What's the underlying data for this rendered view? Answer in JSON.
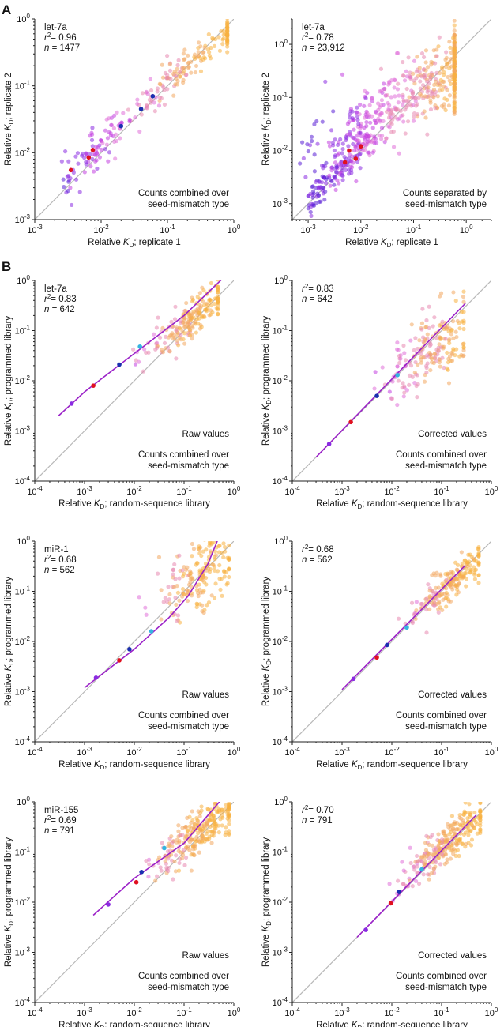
{
  "figure": {
    "panel_letters": [
      "A",
      "B"
    ],
    "colors": {
      "identity_line": "#b8b8b8",
      "fit_line": "#9b22c8",
      "scatter_palette": [
        "#5a1fd6",
        "#8a2be2",
        "#c23fe0",
        "#e070d8",
        "#e888b0",
        "#f2a860",
        "#f7b040"
      ],
      "mark_points": [
        "#8a2be2",
        "#e01020",
        "#1a2fb0",
        "#35b4e0"
      ]
    }
  },
  "chart_data": [
    {
      "type": "scatter",
      "panel": "A",
      "xlabel": "Relative K_D; replicate 1",
      "ylabel": "Relative K_D; replicate 2",
      "xlim": [
        0.001,
        1
      ],
      "ylim": [
        0.001,
        1
      ],
      "x_scale": "log",
      "y_scale": "log",
      "x_ticks": [
        "10^-3",
        "10^-2",
        "10^-1",
        "10^0"
      ],
      "y_ticks": [
        "10^-3",
        "10^-2",
        "10^-1",
        "10^0"
      ],
      "identity_line": true,
      "stats": {
        "name": "let-7a",
        "r2": "0.96",
        "n": "1477"
      },
      "annotation": [
        "Counts combined over",
        "seed-mismatch type"
      ],
      "cloud": {
        "center_x": 0.2,
        "center_y": 0.2,
        "spread_x": 0.7,
        "spread_y": 0.12,
        "tail_x": [
          0.0025,
          0.02
        ],
        "count": 260
      },
      "highlighted_points": [
        {
          "x": 0.0035,
          "y": 0.0055,
          "color": "#e01020"
        },
        {
          "x": 0.0065,
          "y": 0.0085,
          "color": "#e01020"
        },
        {
          "x": 0.0075,
          "y": 0.011,
          "color": "#e01020"
        },
        {
          "x": 0.02,
          "y": 0.025,
          "color": "#1a2fb0"
        },
        {
          "x": 0.04,
          "y": 0.045,
          "color": "#1a2fb0"
        },
        {
          "x": 0.06,
          "y": 0.07,
          "color": "#1a2fb0"
        }
      ]
    },
    {
      "type": "scatter",
      "panel": "A",
      "xlabel": "Relative K_D; replicate 1",
      "ylabel": "Relative K_D; replicate 2",
      "xlim": [
        0.0005,
        3
      ],
      "ylim": [
        0.0005,
        3
      ],
      "x_scale": "log",
      "y_scale": "log",
      "x_ticks": [
        "10^-3",
        "10^-2",
        "10^-1",
        "10^0"
      ],
      "y_ticks": [
        "10^-3",
        "10^-2",
        "10^-1",
        "10^0"
      ],
      "identity_line": true,
      "stats": {
        "name": "let-7a",
        "r2": "0.78",
        "n": "23,912"
      },
      "annotation": [
        "Counts separated by",
        "seed-mismatch type"
      ],
      "cloud": {
        "center_x": 0.15,
        "center_y": 0.15,
        "spread_x": 1.2,
        "spread_y": 0.35,
        "tail_x": [
          0.001,
          0.02
        ],
        "count": 700
      },
      "highlighted_points": [
        {
          "x": 0.006,
          "y": 0.01,
          "color": "#e01020"
        },
        {
          "x": 0.008,
          "y": 0.007,
          "color": "#e01020"
        },
        {
          "x": 0.01,
          "y": 0.012,
          "color": "#e01020"
        },
        {
          "x": 0.005,
          "y": 0.006,
          "color": "#e01020"
        }
      ]
    },
    {
      "type": "scatter",
      "panel": "B",
      "xlabel": "Relative K_D; random-sequence library",
      "ylabel": "Relative K_D; programmed library",
      "xlim": [
        0.0001,
        1
      ],
      "ylim": [
        0.0001,
        1
      ],
      "x_scale": "log",
      "y_scale": "log",
      "x_ticks": [
        "10^-4",
        "10^-3",
        "10^-2",
        "10^-1",
        "10^0"
      ],
      "y_ticks": [
        "10^-4",
        "10^-3",
        "10^-2",
        "10^-1",
        "10^0"
      ],
      "identity_line": true,
      "fit_curve": {
        "x": [
          0.0003,
          0.001,
          0.01,
          0.1,
          0.6
        ],
        "y": [
          0.002,
          0.006,
          0.035,
          0.2,
          1.1
        ]
      },
      "stats": {
        "name": "let-7a",
        "r2": "0.83",
        "n": "642"
      },
      "labels": [
        "Raw values",
        "Counts combined over",
        "seed-mismatch type"
      ],
      "cloud": {
        "center_x": 0.12,
        "center_y": 0.15,
        "spread_x": 0.45,
        "spread_y": 0.18,
        "count": 200
      },
      "highlighted_points": [
        {
          "x": 0.00055,
          "y": 0.0035,
          "color": "#8a2be2"
        },
        {
          "x": 0.0015,
          "y": 0.008,
          "color": "#e01020"
        },
        {
          "x": 0.005,
          "y": 0.021,
          "color": "#1a2fb0"
        },
        {
          "x": 0.013,
          "y": 0.048,
          "color": "#35b4e0"
        }
      ]
    },
    {
      "type": "scatter",
      "panel": "B",
      "xlabel": "Relative K_D; random-sequence library",
      "ylabel": "Relative K_D; programmed library",
      "xlim": [
        0.0001,
        1
      ],
      "ylim": [
        0.0001,
        1
      ],
      "x_scale": "log",
      "y_scale": "log",
      "x_ticks": [
        "10^-4",
        "10^-3",
        "10^-2",
        "10^-1",
        "10^0"
      ],
      "y_ticks": [
        "10^-4",
        "10^-3",
        "10^-2",
        "10^-1",
        "10^0"
      ],
      "identity_line": true,
      "fit_curve": {
        "x": [
          0.0003,
          0.3
        ],
        "y": [
          0.0003,
          0.35
        ]
      },
      "stats": {
        "name": "",
        "r2": "0.83",
        "n": "642"
      },
      "labels": [
        "Corrected values",
        "Counts combined over",
        "seed-mismatch type"
      ],
      "cloud": {
        "center_x": 0.07,
        "center_y": 0.05,
        "spread_x": 0.45,
        "spread_y": 0.35,
        "count": 200
      },
      "highlighted_points": [
        {
          "x": 0.00055,
          "y": 0.00055,
          "color": "#8a2be2"
        },
        {
          "x": 0.0015,
          "y": 0.0015,
          "color": "#e01020"
        },
        {
          "x": 0.005,
          "y": 0.005,
          "color": "#1a2fb0"
        },
        {
          "x": 0.013,
          "y": 0.013,
          "color": "#35b4e0"
        }
      ]
    },
    {
      "type": "scatter",
      "panel": "B",
      "xlabel": "Relative K_D; random-sequence library",
      "ylabel": "Relative K_D; programmed library",
      "xlim": [
        0.0001,
        1
      ],
      "ylim": [
        0.0001,
        1
      ],
      "x_scale": "log",
      "y_scale": "log",
      "x_ticks": [
        "10^-4",
        "10^-3",
        "10^-2",
        "10^-1",
        "10^0"
      ],
      "y_ticks": [
        "10^-4",
        "10^-3",
        "10^-2",
        "10^-1",
        "10^0"
      ],
      "identity_line": true,
      "fit_curve": {
        "x": [
          0.001,
          0.01,
          0.05,
          0.12,
          0.3,
          0.5
        ],
        "y": [
          0.0012,
          0.007,
          0.03,
          0.08,
          0.35,
          1.2
        ]
      },
      "stats": {
        "name": "miR-1",
        "r2": "0.68",
        "n": "562"
      },
      "labels": [
        "Raw values",
        "Counts combined over",
        "seed-mismatch type"
      ],
      "cloud": {
        "center_x": 0.2,
        "center_y": 0.2,
        "spread_x": 0.4,
        "spread_y": 0.35,
        "count": 190
      },
      "highlighted_points": [
        {
          "x": 0.0017,
          "y": 0.0019,
          "color": "#8a2be2"
        },
        {
          "x": 0.005,
          "y": 0.0042,
          "color": "#e01020"
        },
        {
          "x": 0.008,
          "y": 0.007,
          "color": "#1a2fb0"
        },
        {
          "x": 0.022,
          "y": 0.016,
          "color": "#35b4e0"
        }
      ]
    },
    {
      "type": "scatter",
      "panel": "B",
      "xlabel": "Relative K_D; random-sequence library",
      "ylabel": "Relative K_D; programmed library",
      "xlim": [
        0.0001,
        1
      ],
      "ylim": [
        0.0001,
        1
      ],
      "x_scale": "log",
      "y_scale": "log",
      "x_ticks": [
        "10^-4",
        "10^-3",
        "10^-2",
        "10^-1",
        "10^0"
      ],
      "y_ticks": [
        "10^-4",
        "10^-3",
        "10^-2",
        "10^-1",
        "10^0"
      ],
      "identity_line": true,
      "fit_curve": {
        "x": [
          0.001,
          0.3
        ],
        "y": [
          0.0011,
          0.33
        ]
      },
      "stats": {
        "name": "",
        "r2": "0.68",
        "n": "562"
      },
      "labels": [
        "Corrected values",
        "Counts combined over",
        "seed-mismatch type"
      ],
      "cloud": {
        "center_x": 0.14,
        "center_y": 0.14,
        "spread_x": 0.4,
        "spread_y": 0.18,
        "count": 190
      },
      "highlighted_points": [
        {
          "x": 0.0017,
          "y": 0.0018,
          "color": "#8a2be2"
        },
        {
          "x": 0.005,
          "y": 0.0048,
          "color": "#e01020"
        },
        {
          "x": 0.008,
          "y": 0.0085,
          "color": "#1a2fb0"
        },
        {
          "x": 0.02,
          "y": 0.019,
          "color": "#35b4e0"
        }
      ]
    },
    {
      "type": "scatter",
      "panel": "B",
      "xlabel": "Relative K_D; random-sequence library",
      "ylabel": "Relative K_D; programmed library",
      "xlim": [
        0.0001,
        1
      ],
      "ylim": [
        0.0001,
        1
      ],
      "x_scale": "log",
      "y_scale": "log",
      "x_ticks": [
        "10^-4",
        "10^-3",
        "10^-2",
        "10^-1",
        "10^0"
      ],
      "y_ticks": [
        "10^-4",
        "10^-3",
        "10^-2",
        "10^-1",
        "10^0"
      ],
      "identity_line": true,
      "fit_curve": {
        "x": [
          0.0015,
          0.01,
          0.1,
          0.6
        ],
        "y": [
          0.0055,
          0.03,
          0.15,
          1.2
        ]
      },
      "stats": {
        "name": "miR-155",
        "r2": "0.69",
        "n": "791"
      },
      "labels": [
        "Raw values",
        "Counts combined over",
        "seed-mismatch type"
      ],
      "cloud": {
        "center_x": 0.2,
        "center_y": 0.25,
        "spread_x": 0.45,
        "spread_y": 0.22,
        "count": 260
      },
      "highlighted_points": [
        {
          "x": 0.003,
          "y": 0.009,
          "color": "#8a2be2"
        },
        {
          "x": 0.011,
          "y": 0.025,
          "color": "#e01020"
        },
        {
          "x": 0.014,
          "y": 0.04,
          "color": "#1a2fb0"
        },
        {
          "x": 0.04,
          "y": 0.12,
          "color": "#35b4e0"
        }
      ]
    },
    {
      "type": "scatter",
      "panel": "B",
      "xlabel": "Relative K_D; random-sequence library",
      "ylabel": "Relative K_D; programmed library",
      "xlim": [
        0.0001,
        1
      ],
      "ylim": [
        0.0001,
        1
      ],
      "x_scale": "log",
      "y_scale": "log",
      "x_ticks": [
        "10^-4",
        "10^-3",
        "10^-2",
        "10^-1",
        "10^0"
      ],
      "y_ticks": [
        "10^-4",
        "10^-3",
        "10^-2",
        "10^-1",
        "10^0"
      ],
      "identity_line": true,
      "fit_curve": {
        "x": [
          0.002,
          0.5
        ],
        "y": [
          0.002,
          0.55
        ]
      },
      "stats": {
        "name": "",
        "r2": "0.70",
        "n": "791"
      },
      "labels": [
        "Corrected values",
        "Counts combined over",
        "seed-mismatch type"
      ],
      "cloud": {
        "center_x": 0.15,
        "center_y": 0.17,
        "spread_x": 0.45,
        "spread_y": 0.22,
        "count": 260
      },
      "highlighted_points": [
        {
          "x": 0.003,
          "y": 0.0028,
          "color": "#8a2be2"
        },
        {
          "x": 0.0095,
          "y": 0.0095,
          "color": "#e01020"
        },
        {
          "x": 0.014,
          "y": 0.016,
          "color": "#1a2fb0"
        },
        {
          "x": 0.04,
          "y": 0.045,
          "color": "#35b4e0"
        }
      ]
    }
  ]
}
